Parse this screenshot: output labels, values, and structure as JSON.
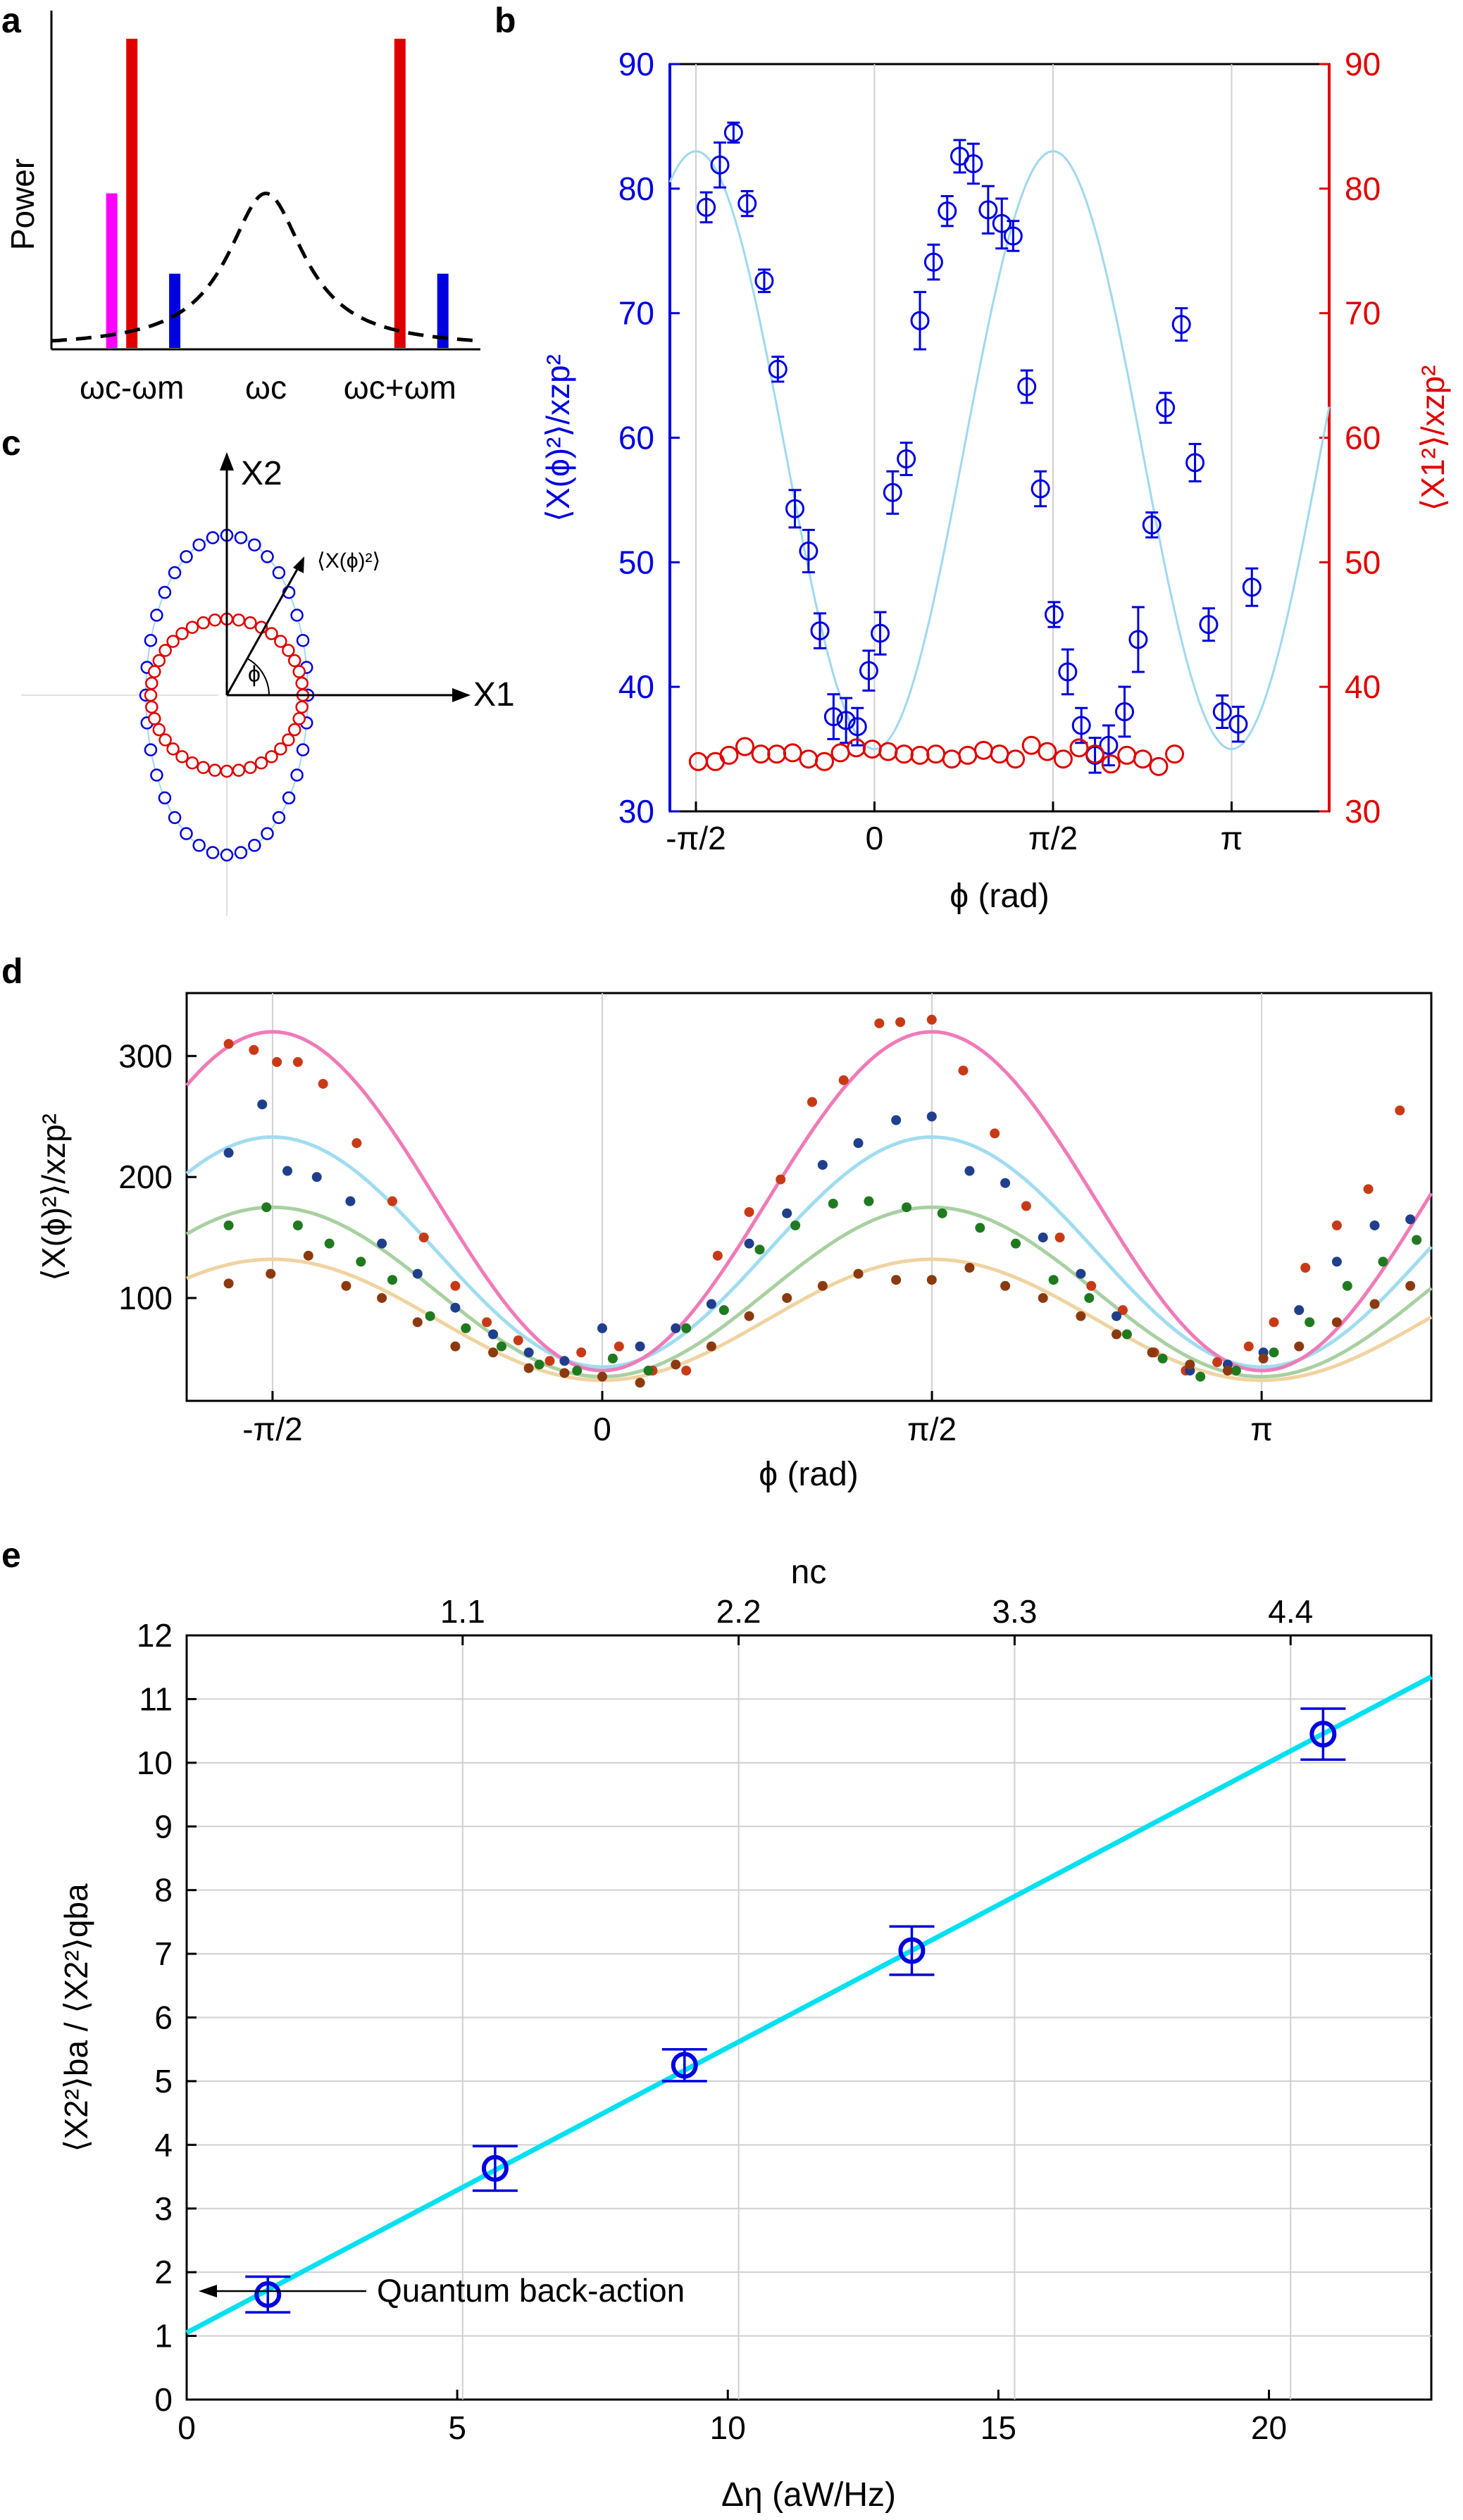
{
  "colors": {
    "blue": "#0000e0",
    "red": "#e00000",
    "magenta": "#ff00ff",
    "lightblue": "#9fd8f2",
    "pink": "#f07ab8",
    "skyblue": "#a0dcf0",
    "sage": "#a8d0a0",
    "wheat": "#f0d3a0",
    "cyan": "#00e0f0",
    "grid": "#d0d0d0"
  },
  "panels": {
    "a": {
      "letter": "a",
      "ylabel": "Power",
      "xticks": [
        "ωc-ωm",
        "ωc",
        "ωc+ωm"
      ]
    },
    "b": {
      "letter": "b",
      "ylabel_left": "⟨X(ϕ)²⟩/xzp²",
      "ylabel_right": "⟨X1²⟩/xzp²",
      "xlabel": "ϕ (rad)",
      "xticks": [
        "-π/2",
        "0",
        "π/2",
        "π"
      ],
      "yticks": [
        "30",
        "40",
        "50",
        "60",
        "70",
        "80",
        "90"
      ]
    },
    "c": {
      "letter": "c",
      "axis_x": "X1",
      "axis_y": "X2",
      "angle_label": "ϕ",
      "vector_label": "⟨X(ϕ)²⟩"
    },
    "d": {
      "letter": "d",
      "ylabel": "⟨X(ϕ)²⟩/xzp²",
      "xlabel": "ϕ (rad)",
      "xticks": [
        "-π/2",
        "0",
        "π/2",
        "π"
      ],
      "yticks": [
        "100",
        "200",
        "300"
      ]
    },
    "e": {
      "letter": "e",
      "xlabel": "Δη (aW/Hz)",
      "ylabel": "⟨X2²⟩ba / ⟨X2²⟩qba",
      "top_label": "nc",
      "xticks": [
        "0",
        "5",
        "10",
        "15",
        "20"
      ],
      "top_ticks": [
        "1.1",
        "2.2",
        "3.3",
        "4.4"
      ],
      "yticks": [
        "0",
        "1",
        "2",
        "3",
        "4",
        "5",
        "6",
        "7",
        "8",
        "9",
        "10",
        "11",
        "12"
      ],
      "annotation": "Quantum back-action"
    }
  },
  "chart_data": [
    {
      "panel": "a",
      "type": "bar",
      "title": "",
      "xlabel": "",
      "ylabel": "Power",
      "categories": [
        "ωc-ωm",
        "ωc",
        "ωc+ωm"
      ],
      "series": [
        {
          "name": "magenta probe",
          "x": -1.15,
          "value": 0.5
        },
        {
          "name": "red tone 1",
          "x": -1.0,
          "value": 1.0
        },
        {
          "name": "blue tone 1",
          "x": -0.68,
          "value": 0.24
        },
        {
          "name": "red tone 2",
          "x": 1.0,
          "value": 1.0
        },
        {
          "name": "blue tone 2",
          "x": 1.32,
          "value": 0.24
        }
      ],
      "curve": {
        "type": "lorentzian",
        "center": 0,
        "peak": 0.5,
        "width": 0.35,
        "style": "dashed"
      }
    },
    {
      "panel": "b",
      "type": "scatter",
      "title": "",
      "xlabel": "ϕ (rad)",
      "ylabel": "⟨X(ϕ)²⟩/xzp²",
      "ylabel_right": "⟨X1²⟩/xzp²",
      "xlim": [
        -1.8,
        4.0
      ],
      "ylim": [
        30,
        90
      ],
      "series": [
        {
          "name": "⟨X(ϕ)²⟩",
          "color": "blue",
          "marker": "open-circle",
          "x": [
            -1.48,
            -1.36,
            -1.24,
            -1.12,
            -0.97,
            -0.85,
            -0.7,
            -0.58,
            -0.48,
            -0.36,
            -0.25,
            -0.15,
            -0.05,
            0.05,
            0.16,
            0.28,
            0.4,
            0.52,
            0.64,
            0.75,
            0.87,
            1.0,
            1.12,
            1.22,
            1.34,
            1.46,
            1.58,
            1.7,
            1.82,
            1.94,
            2.06,
            2.2,
            2.32,
            2.44,
            2.56,
            2.7,
            2.82,
            2.94,
            3.06,
            3.2,
            3.32
          ],
          "y": [
            78.5,
            81.9,
            84.5,
            78.8,
            72.6,
            65.5,
            54.3,
            50.9,
            44.5,
            37.6,
            37.3,
            36.8,
            41.3,
            44.3,
            55.6,
            58.3,
            69.4,
            74.1,
            78.2,
            82.6,
            82.0,
            78.3,
            77.2,
            76.2,
            64.1,
            55.9,
            45.8,
            41.2,
            36.9,
            34.5,
            35.3,
            38.0,
            43.8,
            53.0,
            62.4,
            69.1,
            58.0,
            45.0,
            38.0,
            37.0,
            48.0
          ],
          "errors": [
            1.2,
            1.8,
            0.8,
            1.0,
            0.9,
            1.0,
            1.5,
            1.7,
            1.4,
            1.8,
            1.8,
            1.5,
            1.6,
            1.7,
            1.7,
            1.3,
            2.3,
            1.4,
            1.2,
            1.3,
            1.6,
            1.9,
            2.0,
            1.2,
            1.3,
            1.4,
            1.0,
            1.8,
            1.4,
            1.4,
            1.6,
            2.0,
            2.6,
            1.0,
            1.2,
            1.3,
            1.5,
            1.3,
            1.3,
            1.4,
            1.5
          ],
          "fit": {
            "form": "mean + amp*cos(2ϕ+π)",
            "mean": 59.0,
            "amp": 24.0,
            "color": "lightblue"
          }
        },
        {
          "name": "⟨X1²⟩",
          "color": "red",
          "marker": "open-circle",
          "x": [
            -1.55,
            -1.4,
            -1.28,
            -1.14,
            -1.0,
            -0.86,
            -0.72,
            -0.58,
            -0.44,
            -0.3,
            -0.16,
            -0.02,
            0.12,
            0.26,
            0.4,
            0.54,
            0.68,
            0.82,
            0.96,
            1.1,
            1.24,
            1.38,
            1.52,
            1.66,
            1.8,
            1.94,
            2.08,
            2.22,
            2.36,
            2.5,
            2.64
          ],
          "y": [
            34.0,
            34.0,
            34.5,
            35.2,
            34.6,
            34.6,
            34.7,
            34.2,
            34.0,
            34.7,
            35.1,
            35.0,
            34.8,
            34.6,
            34.5,
            34.6,
            34.2,
            34.5,
            34.9,
            34.6,
            34.2,
            35.3,
            34.8,
            34.2,
            35.1,
            34.6,
            33.8,
            34.5,
            34.2,
            33.6,
            34.6
          ],
          "axis": "right"
        }
      ],
      "xticks": [
        {
          "value": -1.5708,
          "label": "-π/2"
        },
        {
          "value": 0,
          "label": "0"
        },
        {
          "value": 1.5708,
          "label": "π/2"
        },
        {
          "value": 3.1416,
          "label": "π"
        }
      ]
    },
    {
      "panel": "c",
      "type": "scatter",
      "title": "",
      "xlabel": "X1",
      "ylabel": "X2",
      "series": [
        {
          "name": "⟨X(ϕ)²⟩ polar",
          "color": "blue",
          "marker": "open-circle",
          "shape": "ellipse",
          "semi_x": 1.0,
          "semi_y": 2.05,
          "points": 36
        },
        {
          "name": "⟨X1²⟩ polar",
          "color": "red",
          "marker": "open-circle",
          "shape": "circle",
          "radius": 1.0,
          "points": 40
        }
      ]
    },
    {
      "panel": "d",
      "type": "scatter",
      "title": "",
      "xlabel": "ϕ (rad)",
      "ylabel": "⟨X(ϕ)²⟩/xzp²",
      "xlim": [
        -1.98,
        3.95
      ],
      "ylim": [
        15,
        352
      ],
      "series": [
        {
          "name": "series 1",
          "color": "#c83a16",
          "fit_color": "pink",
          "mean": 180,
          "amp": 140,
          "x": [
            -1.78,
            -1.66,
            -1.55,
            -1.45,
            -1.33,
            -1.17,
            -1.0,
            -0.85,
            -0.7,
            -0.55,
            -0.4,
            -0.25,
            -0.1,
            0.08,
            0.24,
            0.4,
            0.55,
            0.7,
            0.85,
            1.0,
            1.15,
            1.32,
            1.42,
            1.57,
            1.72,
            1.87,
            2.02,
            2.18,
            2.33,
            2.48,
            2.63,
            2.78,
            2.93,
            3.08,
            3.2,
            3.35,
            3.5,
            3.65,
            3.8
          ],
          "y": [
            310,
            305,
            295,
            295,
            277,
            228,
            180,
            150,
            110,
            80,
            65,
            48,
            55,
            60,
            40,
            40,
            135,
            171,
            198,
            262,
            280,
            327,
            328,
            330,
            288,
            236,
            176,
            150,
            110,
            90,
            55,
            40,
            47,
            60,
            80,
            125,
            160,
            190,
            255
          ]
        },
        {
          "name": "series 2",
          "color": "#1f3f8c",
          "fit_color": "skyblue",
          "mean": 138,
          "amp": 95,
          "x": [
            -1.78,
            -1.62,
            -1.5,
            -1.36,
            -1.2,
            -1.05,
            -0.88,
            -0.7,
            -0.52,
            -0.35,
            -0.18,
            0.0,
            0.18,
            0.35,
            0.52,
            0.7,
            0.88,
            1.05,
            1.22,
            1.4,
            1.57,
            1.75,
            1.92,
            2.1,
            2.28,
            2.45,
            2.62,
            2.8,
            2.98,
            3.15,
            3.32,
            3.5,
            3.68,
            3.85
          ],
          "y": [
            220,
            260,
            205,
            200,
            180,
            145,
            120,
            92,
            70,
            55,
            48,
            75,
            60,
            75,
            95,
            145,
            170,
            210,
            228,
            247,
            250,
            205,
            195,
            150,
            120,
            85,
            55,
            40,
            45,
            55,
            90,
            130,
            160,
            165
          ]
        },
        {
          "name": "series 3",
          "color": "#1f7a1f",
          "fit_color": "sage",
          "mean": 105,
          "amp": 70,
          "x": [
            -1.78,
            -1.6,
            -1.45,
            -1.3,
            -1.15,
            -1.0,
            -0.82,
            -0.65,
            -0.48,
            -0.3,
            -0.12,
            0.05,
            0.22,
            0.4,
            0.58,
            0.75,
            0.92,
            1.1,
            1.27,
            1.45,
            1.62,
            1.8,
            1.97,
            2.15,
            2.32,
            2.5,
            2.67,
            2.85,
            3.02,
            3.2,
            3.37,
            3.55,
            3.72,
            3.88
          ],
          "y": [
            160,
            175,
            160,
            145,
            130,
            115,
            85,
            75,
            60,
            45,
            40,
            50,
            40,
            75,
            90,
            140,
            160,
            178,
            180,
            175,
            170,
            158,
            145,
            115,
            100,
            70,
            50,
            35,
            40,
            55,
            80,
            110,
            130,
            148
          ]
        },
        {
          "name": "series 4",
          "color": "#8b3a10",
          "fit_color": "wheat",
          "mean": 82,
          "amp": 50,
          "x": [
            -1.78,
            -1.58,
            -1.4,
            -1.22,
            -1.05,
            -0.88,
            -0.7,
            -0.52,
            -0.35,
            -0.18,
            0.0,
            0.18,
            0.35,
            0.52,
            0.7,
            0.88,
            1.05,
            1.22,
            1.4,
            1.57,
            1.75,
            1.92,
            2.1,
            2.28,
            2.45,
            2.62,
            2.8,
            2.98,
            3.15,
            3.32,
            3.5,
            3.68,
            3.85
          ],
          "y": [
            112,
            120,
            135,
            110,
            100,
            80,
            60,
            55,
            42,
            38,
            35,
            30,
            45,
            60,
            85,
            100,
            110,
            120,
            115,
            115,
            125,
            110,
            100,
            85,
            70,
            55,
            45,
            40,
            50,
            60,
            80,
            95,
            110
          ]
        }
      ],
      "xticks": [
        {
          "value": -1.5708,
          "label": "-π/2"
        },
        {
          "value": 0,
          "label": "0"
        },
        {
          "value": 1.5708,
          "label": "π/2"
        },
        {
          "value": 3.1416,
          "label": "π"
        }
      ]
    },
    {
      "panel": "e",
      "type": "scatter",
      "title": "",
      "xlabel": "Δη (aW/Hz)",
      "ylabel": "⟨X2²⟩ba / ⟨X2²⟩qba",
      "top_xlabel": "nc",
      "xlim": [
        0,
        23
      ],
      "ylim": [
        0,
        12
      ],
      "series": [
        {
          "name": "data",
          "color": "blue",
          "marker": "open-circle",
          "x": [
            1.5,
            5.7,
            9.2,
            13.4,
            21.0
          ],
          "y": [
            1.65,
            3.63,
            5.25,
            7.05,
            10.45
          ],
          "errors": [
            0.28,
            0.35,
            0.25,
            0.38,
            0.4
          ]
        },
        {
          "name": "linear fit",
          "color": "cyan",
          "x": [
            0,
            23
          ],
          "y": [
            1.05,
            11.35
          ]
        }
      ],
      "top_ticks": [
        {
          "value": 1.1,
          "x": 5.1
        },
        {
          "value": 2.2,
          "x": 10.2
        },
        {
          "value": 3.3,
          "x": 15.3
        },
        {
          "value": 4.4,
          "x": 20.4
        }
      ]
    }
  ]
}
